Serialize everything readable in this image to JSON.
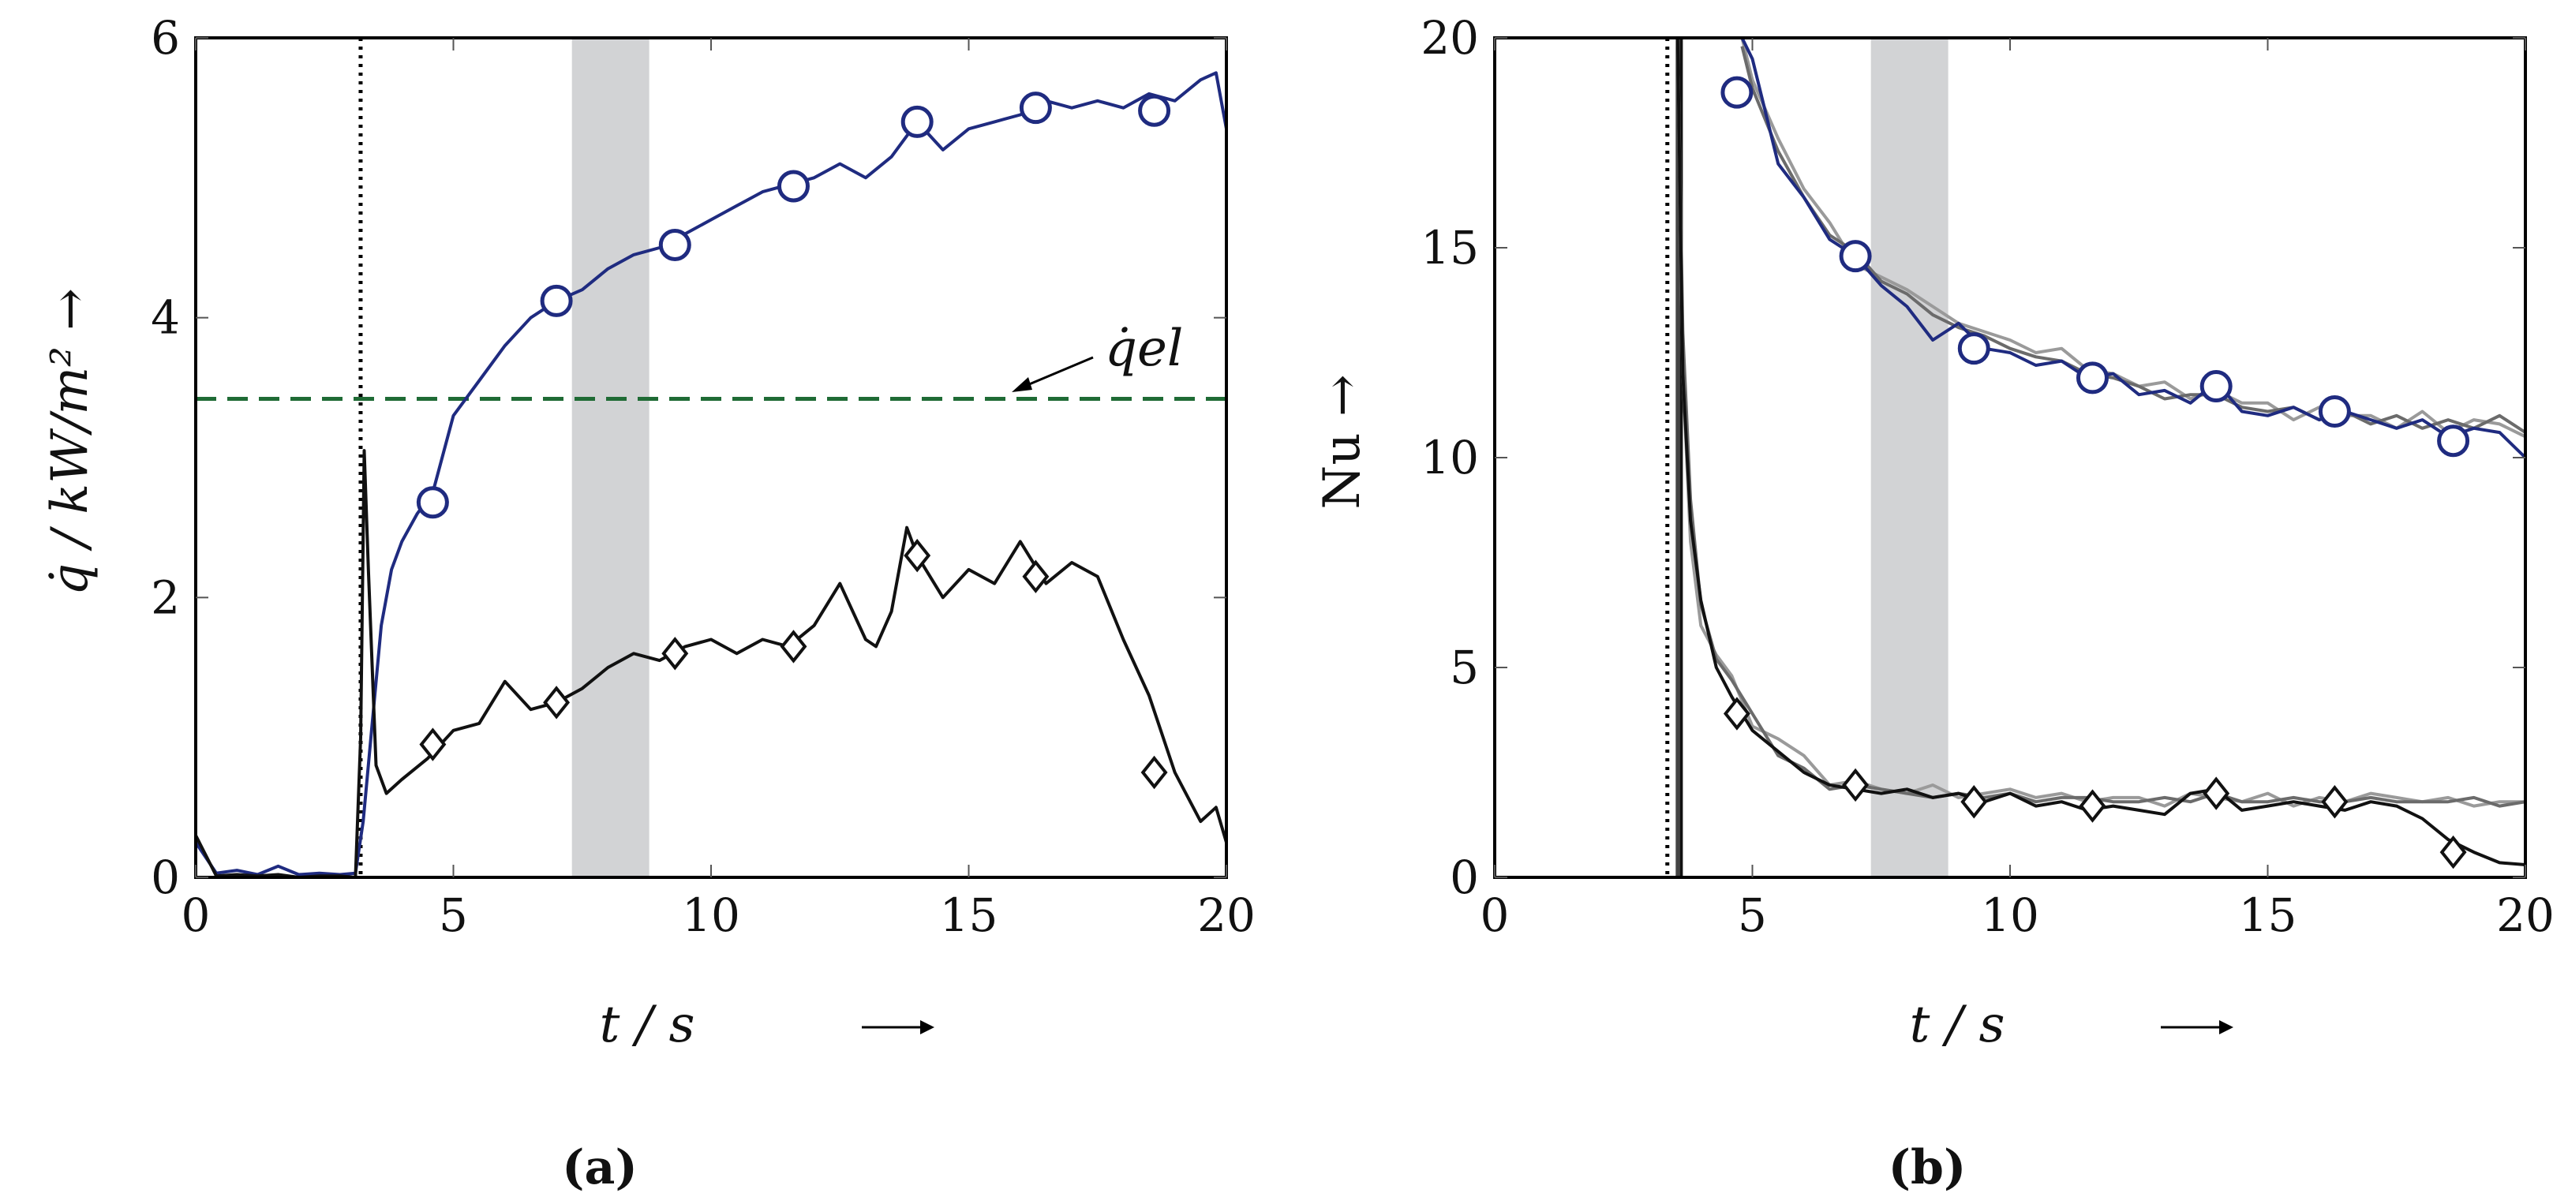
{
  "chart_data": [
    {
      "type": "line",
      "panel_label": "(a)",
      "xlabel": "t / s",
      "ylabel": "q̇ / kW/m² →",
      "xlim": [
        0,
        20
      ],
      "ylim": [
        0,
        6
      ],
      "xticks": [
        "0",
        "5",
        "10",
        "15",
        "20"
      ],
      "yticks": [
        "0",
        "2",
        "4",
        "6"
      ],
      "ytick_values": [
        0,
        2,
        4,
        6
      ],
      "grid": false,
      "vline_dotted": 3.2,
      "shaded_band": [
        7.3,
        8.8
      ],
      "reference_line": {
        "label": "q̇el",
        "value": 3.42,
        "color": "#1f6b35"
      },
      "series": [
        {
          "name": "blue (circles)",
          "color": "#1f2b80",
          "marker": "circle",
          "x": [
            0,
            0.4,
            0.8,
            1.2,
            1.6,
            2.0,
            2.4,
            2.8,
            3.1,
            3.25,
            3.4,
            3.6,
            3.8,
            4.0,
            4.3,
            4.6,
            5.0,
            5.5,
            6.0,
            6.5,
            7.0,
            7.5,
            8.0,
            8.5,
            9.0,
            9.5,
            10.0,
            10.5,
            11.0,
            11.5,
            12.0,
            12.5,
            13.0,
            13.5,
            14.0,
            14.5,
            15.0,
            15.5,
            16.0,
            16.5,
            17.0,
            17.5,
            18.0,
            18.5,
            19.0,
            19.5,
            19.8,
            20.0
          ],
          "values": [
            0.25,
            0.03,
            0.05,
            0.02,
            0.08,
            0.02,
            0.03,
            0.02,
            0.03,
            0.4,
            1.0,
            1.8,
            2.2,
            2.4,
            2.6,
            2.75,
            3.3,
            3.55,
            3.8,
            4.0,
            4.12,
            4.2,
            4.35,
            4.45,
            4.5,
            4.6,
            4.7,
            4.8,
            4.9,
            4.95,
            5.0,
            5.1,
            5.0,
            5.15,
            5.4,
            5.2,
            5.35,
            5.4,
            5.45,
            5.55,
            5.5,
            5.55,
            5.5,
            5.6,
            5.55,
            5.7,
            5.75,
            5.35
          ],
          "marker_x": [
            4.6,
            7.0,
            9.3,
            11.6,
            14.0,
            16.3,
            18.6
          ],
          "marker_y": [
            2.68,
            4.12,
            4.52,
            4.94,
            5.4,
            5.5,
            5.48
          ]
        },
        {
          "name": "black (diamonds)",
          "color": "#111111",
          "marker": "diamond",
          "x": [
            0,
            0.4,
            0.8,
            1.2,
            1.6,
            2.0,
            2.4,
            2.8,
            3.1,
            3.2,
            3.27,
            3.35,
            3.5,
            3.7,
            4.0,
            4.5,
            5.0,
            5.5,
            6.0,
            6.5,
            7.0,
            7.5,
            8.0,
            8.5,
            9.0,
            9.5,
            10.0,
            10.5,
            11.0,
            11.5,
            12.0,
            12.5,
            13.0,
            13.2,
            13.5,
            13.8,
            14.0,
            14.5,
            15.0,
            15.5,
            16.0,
            16.5,
            17.0,
            17.5,
            18.0,
            18.5,
            19.0,
            19.5,
            19.8,
            20.0
          ],
          "values": [
            0.3,
            0.01,
            0.02,
            0.01,
            0.02,
            0.0,
            0.01,
            0.01,
            0.0,
            1.0,
            3.05,
            2.2,
            0.8,
            0.6,
            0.7,
            0.85,
            1.05,
            1.1,
            1.4,
            1.2,
            1.25,
            1.35,
            1.5,
            1.6,
            1.55,
            1.65,
            1.7,
            1.6,
            1.7,
            1.65,
            1.8,
            2.1,
            1.7,
            1.65,
            1.9,
            2.5,
            2.3,
            2.0,
            2.2,
            2.1,
            2.4,
            2.1,
            2.25,
            2.15,
            1.7,
            1.3,
            0.75,
            0.4,
            0.5,
            0.25
          ],
          "marker_x": [
            4.6,
            7.0,
            9.3,
            11.6,
            14.0,
            16.3,
            18.6
          ],
          "marker_y": [
            0.95,
            1.25,
            1.6,
            1.65,
            2.3,
            2.15,
            0.75
          ]
        }
      ]
    },
    {
      "type": "line",
      "panel_label": "(b)",
      "xlabel": "t / s",
      "ylabel": "Nu →",
      "xlim": [
        0,
        20
      ],
      "ylim": [
        0,
        20
      ],
      "xticks": [
        "0",
        "5",
        "10",
        "15",
        "20"
      ],
      "yticks": [
        "0",
        "5",
        "10",
        "15",
        "20"
      ],
      "ytick_values": [
        0,
        5,
        10,
        15,
        20
      ],
      "grid": false,
      "vline_dotted": 3.35,
      "shaded_band": [
        7.3,
        8.8
      ],
      "series": [
        {
          "name": "gray light (upper)",
          "color": "#9a9a9a",
          "x": [
            4.8,
            5.0,
            5.5,
            6.0,
            6.5,
            7.0,
            7.5,
            8.0,
            8.5,
            9.0,
            9.5,
            10.0,
            10.5,
            11.0,
            11.5,
            12.0,
            12.5,
            13.0,
            13.5,
            14.0,
            14.5,
            15.0,
            15.5,
            16.0,
            16.5,
            17.0,
            17.5,
            18.0,
            18.5,
            19.0,
            19.5,
            20.0
          ],
          "values": [
            20.0,
            19.0,
            17.6,
            16.4,
            15.6,
            14.6,
            14.3,
            14.0,
            13.6,
            13.2,
            13.0,
            12.8,
            12.5,
            12.6,
            12.1,
            12.0,
            11.7,
            11.8,
            11.4,
            11.6,
            11.3,
            11.3,
            10.9,
            11.2,
            11.0,
            11.0,
            10.7,
            11.1,
            10.6,
            10.9,
            10.8,
            10.5
          ]
        },
        {
          "name": "gray dark (upper)",
          "color": "#6b6b6b",
          "x": [
            4.8,
            5.0,
            5.5,
            6.0,
            6.5,
            7.0,
            7.5,
            8.0,
            8.5,
            9.0,
            9.5,
            10.0,
            10.5,
            11.0,
            11.5,
            12.0,
            12.5,
            13.0,
            13.5,
            14.0,
            14.5,
            15.0,
            15.5,
            16.0,
            16.5,
            17.0,
            17.5,
            18.0,
            18.5,
            19.0,
            19.5,
            20.0
          ],
          "values": [
            19.8,
            18.8,
            17.3,
            16.2,
            15.3,
            14.9,
            14.2,
            13.9,
            13.4,
            13.1,
            12.9,
            12.6,
            12.4,
            12.3,
            12.0,
            11.9,
            11.7,
            11.4,
            11.5,
            11.5,
            11.2,
            11.1,
            11.2,
            10.9,
            11.1,
            10.8,
            11.0,
            10.7,
            10.9,
            10.7,
            11.0,
            10.6
          ]
        },
        {
          "name": "blue (circles)",
          "color": "#1f2b80",
          "marker": "circle",
          "x": [
            4.8,
            5.0,
            5.5,
            6.0,
            6.5,
            7.0,
            7.5,
            8.0,
            8.5,
            9.0,
            9.5,
            10.0,
            10.5,
            11.0,
            11.5,
            12.0,
            12.5,
            13.0,
            13.5,
            14.0,
            14.5,
            15.0,
            15.5,
            16.0,
            16.5,
            17.0,
            17.5,
            18.0,
            18.5,
            19.0,
            19.5,
            20.0
          ],
          "values": [
            20.0,
            19.5,
            17.0,
            16.2,
            15.2,
            14.8,
            14.1,
            13.6,
            12.8,
            13.2,
            12.6,
            12.5,
            12.2,
            12.3,
            11.9,
            12.0,
            11.5,
            11.6,
            11.3,
            11.8,
            11.1,
            11.0,
            11.2,
            10.9,
            11.1,
            10.9,
            10.7,
            10.9,
            10.5,
            10.7,
            10.6,
            10.0
          ],
          "marker_x": [
            4.7,
            7.0,
            9.3,
            11.6,
            14.0,
            16.3,
            18.6
          ],
          "marker_y": [
            18.7,
            14.8,
            12.6,
            11.9,
            11.7,
            11.1,
            10.4
          ]
        },
        {
          "name": "gray light (lower)",
          "color": "#9a9a9a",
          "x": [
            3.55,
            3.65,
            3.8,
            4.0,
            4.3,
            4.6,
            5.0,
            5.5,
            6.0,
            6.5,
            7.0,
            7.5,
            8.0,
            8.5,
            9.0,
            9.5,
            10.0,
            10.5,
            11.0,
            11.5,
            12.0,
            12.5,
            13.0,
            13.5,
            14.0,
            14.5,
            15.0,
            15.5,
            16.0,
            16.5,
            17.0,
            17.5,
            18.0,
            18.5,
            19.0,
            19.5,
            20.0
          ],
          "values": [
            20.0,
            12.0,
            8.0,
            6.0,
            5.3,
            4.8,
            3.6,
            3.3,
            2.9,
            2.2,
            2.3,
            2.1,
            2.0,
            2.2,
            1.9,
            2.0,
            2.1,
            1.9,
            2.0,
            1.8,
            1.9,
            1.9,
            1.7,
            2.0,
            1.9,
            1.8,
            2.0,
            1.7,
            1.9,
            1.8,
            2.0,
            1.9,
            1.8,
            1.9,
            1.7,
            1.8,
            1.8
          ]
        },
        {
          "name": "gray dark (lower)",
          "color": "#6b6b6b",
          "x": [
            3.55,
            3.65,
            3.8,
            4.0,
            4.3,
            4.6,
            5.0,
            5.5,
            6.0,
            6.5,
            7.0,
            7.5,
            8.0,
            8.5,
            9.0,
            9.5,
            10.0,
            10.5,
            11.0,
            11.5,
            12.0,
            12.5,
            13.0,
            13.5,
            14.0,
            14.5,
            15.0,
            15.5,
            16.0,
            16.5,
            17.0,
            17.5,
            18.0,
            18.5,
            19.0,
            19.5,
            20.0
          ],
          "values": [
            20.0,
            13.0,
            9.0,
            6.5,
            5.2,
            4.7,
            3.9,
            2.9,
            2.6,
            2.1,
            2.2,
            2.1,
            2.0,
            1.9,
            2.0,
            1.9,
            2.0,
            1.8,
            1.9,
            1.9,
            1.8,
            1.8,
            1.9,
            1.8,
            2.0,
            1.8,
            1.8,
            1.9,
            1.8,
            1.8,
            1.9,
            1.8,
            1.8,
            1.8,
            1.9,
            1.7,
            1.8
          ]
        },
        {
          "name": "black (diamonds)",
          "color": "#111111",
          "marker": "diamond",
          "x": [
            3.55,
            3.65,
            3.8,
            4.0,
            4.3,
            4.6,
            5.0,
            5.5,
            6.0,
            6.5,
            7.0,
            7.5,
            8.0,
            8.5,
            9.0,
            9.5,
            10.0,
            10.5,
            11.0,
            11.5,
            12.0,
            12.5,
            13.0,
            13.5,
            14.0,
            14.5,
            15.0,
            15.5,
            16.0,
            16.5,
            17.0,
            17.5,
            18.0,
            18.5,
            19.0,
            19.5,
            20.0
          ],
          "values": [
            20.0,
            12.0,
            8.5,
            6.6,
            5.0,
            4.3,
            3.5,
            3.0,
            2.5,
            2.2,
            2.1,
            2.0,
            2.1,
            1.9,
            2.0,
            1.8,
            2.0,
            1.7,
            1.8,
            1.6,
            1.7,
            1.6,
            1.5,
            2.0,
            2.1,
            1.6,
            1.7,
            1.8,
            1.7,
            1.6,
            1.8,
            1.7,
            1.4,
            0.9,
            0.6,
            0.35,
            0.3
          ],
          "marker_x": [
            4.7,
            7.0,
            9.3,
            11.6,
            14.0,
            16.3,
            18.6
          ],
          "marker_y": [
            3.9,
            2.2,
            1.8,
            1.7,
            2.0,
            1.8,
            0.6
          ]
        }
      ]
    }
  ]
}
